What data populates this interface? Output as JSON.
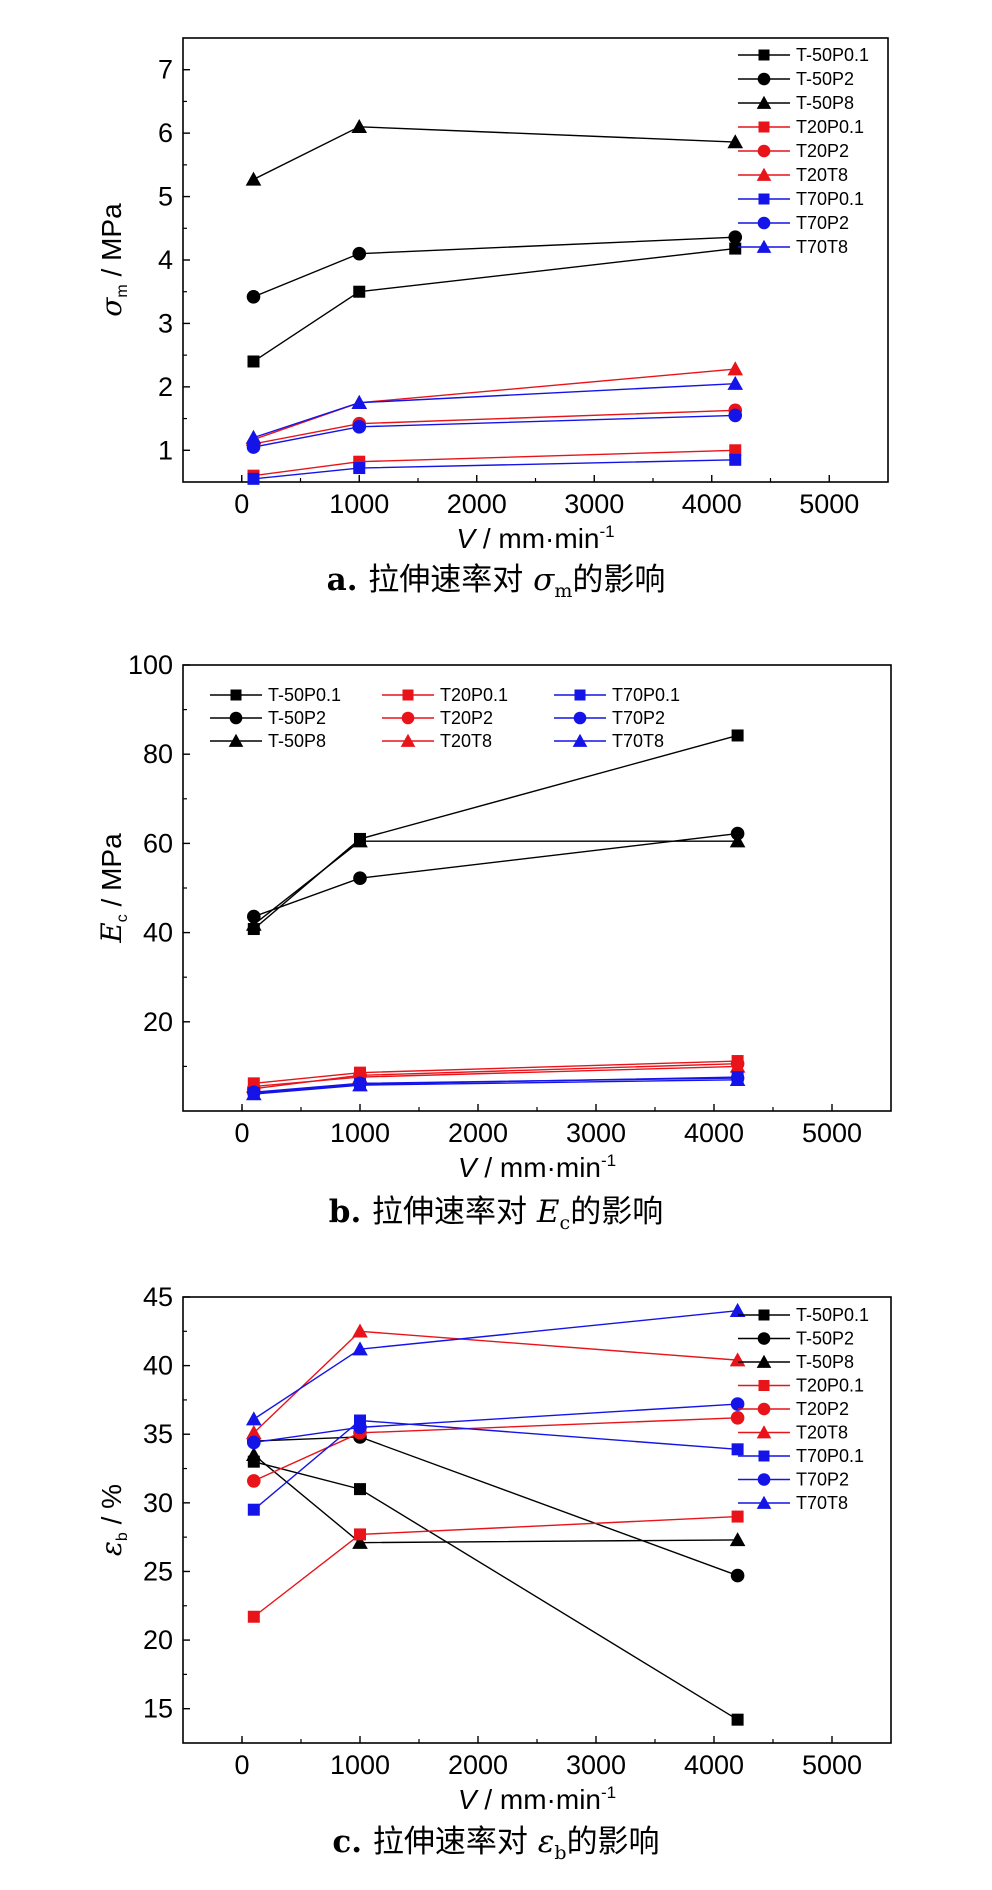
{
  "chart_data": [
    {
      "type": "line",
      "ylabel": {
        "symbol": "σ",
        "sub": "m",
        "unit": " / MPa"
      },
      "xlabel": {
        "symbol": "V",
        "unit": " / mm·min",
        "sup": "-1"
      },
      "caption": {
        "letter": "a.",
        "text": "拉伸速率对 ",
        "symbol": "σ",
        "sub": "m",
        "tail": "的影响"
      },
      "xlim": [
        -500,
        5500
      ],
      "ylim": [
        0.5,
        7.5
      ],
      "xticks": [
        "0",
        "1000",
        "2000",
        "3000",
        "4000",
        "5000"
      ],
      "yticks": [
        "1",
        "2",
        "3",
        "4",
        "5",
        "6",
        "7"
      ],
      "legend": "top-right, single column",
      "x": [
        100,
        1000,
        4200
      ],
      "series": [
        {
          "name": "T-50P0.1",
          "color": "#000000",
          "marker": "square",
          "values": [
            2.4,
            3.5,
            4.18
          ]
        },
        {
          "name": "T-50P2",
          "color": "#000000",
          "marker": "circle",
          "values": [
            3.42,
            4.1,
            4.36
          ]
        },
        {
          "name": "T-50P8",
          "color": "#000000",
          "marker": "triangle",
          "values": [
            5.27,
            6.1,
            5.86
          ]
        },
        {
          "name": "T20P0.1",
          "color": "#e8141a",
          "marker": "square",
          "values": [
            0.6,
            0.82,
            1.0
          ]
        },
        {
          "name": "T20P2",
          "color": "#e8141a",
          "marker": "circle",
          "values": [
            1.1,
            1.42,
            1.63
          ]
        },
        {
          "name": "T20T8",
          "color": "#e8141a",
          "marker": "triangle",
          "values": [
            1.17,
            1.75,
            2.28
          ]
        },
        {
          "name": "T70P0.1",
          "color": "#1414e8",
          "marker": "square",
          "values": [
            0.55,
            0.72,
            0.85
          ]
        },
        {
          "name": "T70P2",
          "color": "#1414e8",
          "marker": "circle",
          "values": [
            1.05,
            1.37,
            1.55
          ]
        },
        {
          "name": "T70T8",
          "color": "#1414e8",
          "marker": "triangle",
          "values": [
            1.2,
            1.75,
            2.05
          ]
        }
      ]
    },
    {
      "type": "line",
      "ylabel": {
        "symbol": "E",
        "sub": "c",
        "unit": " / MPa"
      },
      "xlabel": {
        "symbol": "V",
        "unit": " / mm·min",
        "sup": "-1"
      },
      "caption": {
        "letter": "b.",
        "text": "拉伸速率对 ",
        "symbol": "E",
        "sub": "c",
        "tail": "的影响"
      },
      "xlim": [
        -500,
        5500
      ],
      "ylim": [
        0,
        100
      ],
      "xticks": [
        "0",
        "1000",
        "2000",
        "3000",
        "4000",
        "5000"
      ],
      "yticks": [
        "20",
        "40",
        "60",
        "80",
        "100"
      ],
      "legend": "top-left, three columns",
      "x": [
        100,
        1000,
        4200
      ],
      "series": [
        {
          "name": "T-50P0.1",
          "color": "#000000",
          "marker": "square",
          "values": [
            40.8,
            61.0,
            84.2
          ]
        },
        {
          "name": "T-50P2",
          "color": "#000000",
          "marker": "circle",
          "values": [
            43.6,
            52.2,
            62.2
          ]
        },
        {
          "name": "T-50P8",
          "color": "#000000",
          "marker": "triangle",
          "values": [
            41.8,
            60.5,
            60.5
          ]
        },
        {
          "name": "T20P0.1",
          "color": "#e8141a",
          "marker": "square",
          "values": [
            6.2,
            8.6,
            11.2
          ]
        },
        {
          "name": "T20P2",
          "color": "#e8141a",
          "marker": "circle",
          "values": [
            5.0,
            8.0,
            10.6
          ]
        },
        {
          "name": "T20T8",
          "color": "#e8141a",
          "marker": "triangle",
          "values": [
            5.5,
            7.6,
            10.0
          ]
        },
        {
          "name": "T70P0.1",
          "color": "#1414e8",
          "marker": "square",
          "values": [
            4.0,
            6.0,
            7.6
          ]
        },
        {
          "name": "T70P2",
          "color": "#1414e8",
          "marker": "circle",
          "values": [
            4.2,
            6.2,
            7.4
          ]
        },
        {
          "name": "T70T8",
          "color": "#1414e8",
          "marker": "triangle",
          "values": [
            3.8,
            5.8,
            7.0
          ]
        }
      ]
    },
    {
      "type": "line",
      "ylabel": {
        "symbol": "ε",
        "sub": "b",
        "unit": " / %"
      },
      "xlabel": {
        "symbol": "V",
        "unit": " / mm·min",
        "sup": "-1"
      },
      "caption": {
        "letter": "c.",
        "text": "拉伸速率对 ",
        "symbol": "ε",
        "sub": "b",
        "tail": "的影响"
      },
      "xlim": [
        -500,
        5500
      ],
      "ylim": [
        12.5,
        45
      ],
      "xticks": [
        "0",
        "1000",
        "2000",
        "3000",
        "4000",
        "5000"
      ],
      "yticks": [
        "15",
        "20",
        "25",
        "30",
        "35",
        "40",
        "45"
      ],
      "legend": "top-right, single column",
      "x": [
        100,
        1000,
        4200
      ],
      "series": [
        {
          "name": "T-50P0.1",
          "color": "#000000",
          "marker": "square",
          "values": [
            33.0,
            31.0,
            14.2
          ]
        },
        {
          "name": "T-50P2",
          "color": "#000000",
          "marker": "circle",
          "values": [
            34.5,
            34.8,
            24.7
          ]
        },
        {
          "name": "T-50P8",
          "color": "#000000",
          "marker": "triangle",
          "values": [
            33.5,
            27.1,
            27.3
          ]
        },
        {
          "name": "T20P0.1",
          "color": "#e8141a",
          "marker": "square",
          "values": [
            21.7,
            27.7,
            29.0
          ]
        },
        {
          "name": "T20P2",
          "color": "#e8141a",
          "marker": "circle",
          "values": [
            31.6,
            35.1,
            36.2
          ]
        },
        {
          "name": "T20T8",
          "color": "#e8141a",
          "marker": "triangle",
          "values": [
            35.1,
            42.5,
            40.4
          ]
        },
        {
          "name": "T70P0.1",
          "color": "#1414e8",
          "marker": "square",
          "values": [
            29.5,
            36.0,
            33.9
          ]
        },
        {
          "name": "T70P2",
          "color": "#1414e8",
          "marker": "circle",
          "values": [
            34.4,
            35.5,
            37.2
          ]
        },
        {
          "name": "T70T8",
          "color": "#1414e8",
          "marker": "triangle",
          "values": [
            36.1,
            41.2,
            44.0
          ]
        }
      ]
    }
  ]
}
